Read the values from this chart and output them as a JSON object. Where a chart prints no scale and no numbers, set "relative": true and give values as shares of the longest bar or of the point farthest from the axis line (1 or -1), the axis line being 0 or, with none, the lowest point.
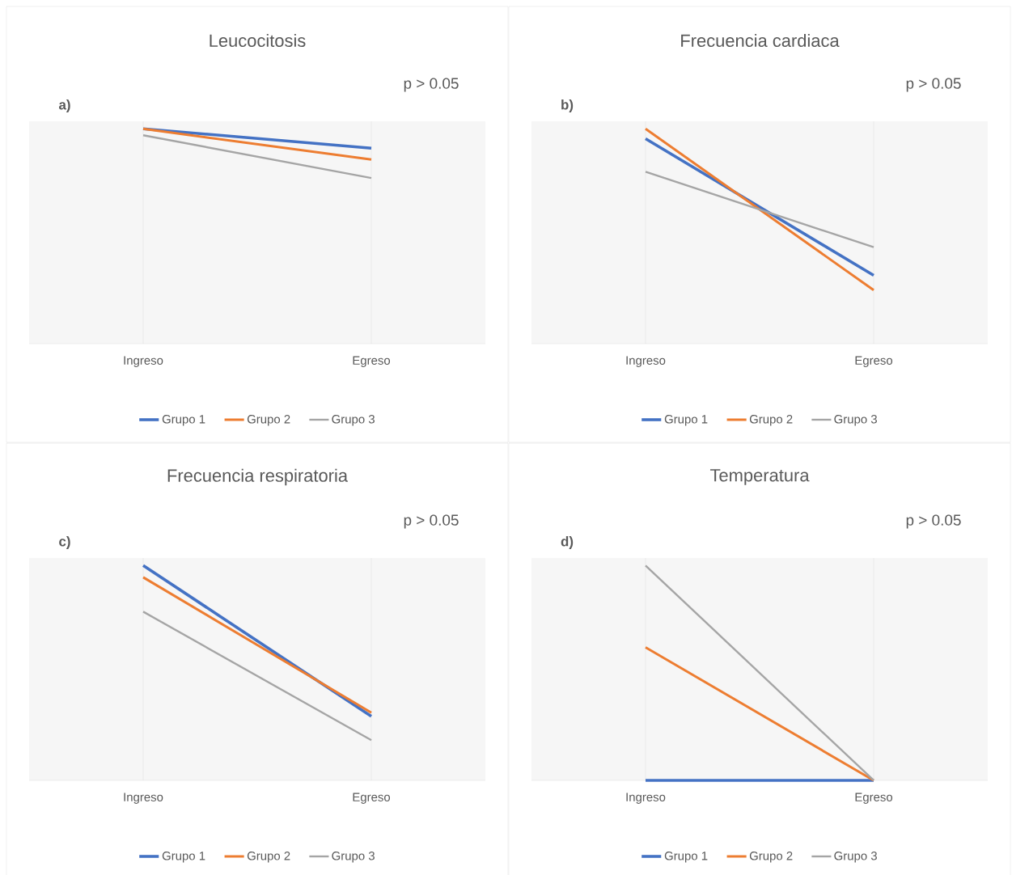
{
  "chart_data": [
    {
      "type": "line",
      "title": "Leucocitosis",
      "categories": [
        "Ingreso",
        "Egreso"
      ],
      "relative": true,
      "grid": "x",
      "legend": "bottom",
      "annotations": [
        "a)",
        "p > 0.05"
      ],
      "series": [
        {
          "name": "Grupo 1",
          "color": "#4472c4",
          "values": [
            1,
            0.91
          ]
        },
        {
          "name": "Grupo 2",
          "color": "#ed7d31",
          "values": [
            1,
            0.857
          ]
        },
        {
          "name": "Grupo 3",
          "color": "#a5a5a5",
          "values": [
            0.97,
            0.771
          ]
        }
      ]
    },
    {
      "type": "line",
      "title": "Frecuencia cardiaca",
      "categories": [
        "Ingreso",
        "Egreso"
      ],
      "relative": true,
      "grid": "x",
      "legend": "bottom",
      "annotations": [
        "b)",
        "p > 0.05"
      ],
      "series": [
        {
          "name": "Grupo 1",
          "color": "#4472c4",
          "values": [
            0.954,
            0.318
          ]
        },
        {
          "name": "Grupo 2",
          "color": "#ed7d31",
          "values": [
            1,
            0.249
          ]
        },
        {
          "name": "Grupo 3",
          "color": "#a5a5a5",
          "values": [
            0.8,
            0.449
          ]
        }
      ]
    },
    {
      "type": "line",
      "title": "Frecuencia respiratoria",
      "categories": [
        "Ingreso",
        "Egreso"
      ],
      "relative": true,
      "grid": "x",
      "legend": "bottom",
      "annotations": [
        "c)",
        "p > 0.05"
      ],
      "series": [
        {
          "name": "Grupo 1",
          "color": "#4472c4",
          "values": [
            1,
            0.298
          ]
        },
        {
          "name": "Grupo 2",
          "color": "#ed7d31",
          "values": [
            0.945,
            0.315
          ]
        },
        {
          "name": "Grupo 3",
          "color": "#a5a5a5",
          "values": [
            0.785,
            0.187
          ]
        }
      ]
    },
    {
      "type": "line",
      "title": "Temperatura",
      "categories": [
        "Ingreso",
        "Egreso"
      ],
      "relative": true,
      "grid": "x",
      "legend": "bottom",
      "annotations": [
        "d)",
        "p > 0.05"
      ],
      "series": [
        {
          "name": "Grupo 1",
          "color": "#4472c4",
          "values": [
            0,
            0
          ]
        },
        {
          "name": "Grupo 2",
          "color": "#ed7d31",
          "values": [
            0.619,
            0
          ]
        },
        {
          "name": "Grupo 3",
          "color": "#a5a5a5",
          "values": [
            1,
            0
          ]
        }
      ]
    }
  ]
}
